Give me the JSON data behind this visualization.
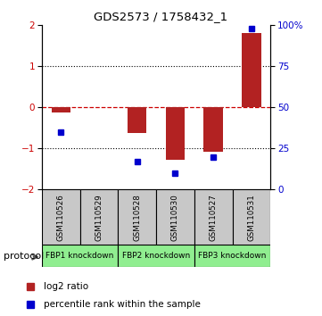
{
  "title": "GDS2573 / 1758432_1",
  "samples": [
    "GSM110526",
    "GSM110529",
    "GSM110528",
    "GSM110530",
    "GSM110527",
    "GSM110531"
  ],
  "log2_ratio": [
    -0.12,
    0.0,
    -0.62,
    -1.28,
    -1.08,
    1.82
  ],
  "percentile_rank": [
    35,
    null,
    17,
    10,
    20,
    98
  ],
  "bar_color": "#B22222",
  "dot_color": "#0000CD",
  "dashed_line_color": "#CC0000",
  "group_defs": [
    [
      0,
      1,
      "FBP1 knockdown"
    ],
    [
      2,
      3,
      "FBP2 knockdown"
    ],
    [
      4,
      5,
      "FBP3 knockdown"
    ]
  ],
  "group_color": "#90EE90",
  "protocol_label": "protocol",
  "legend_red": "log2 ratio",
  "legend_blue": "percentile rank within the sample",
  "sample_box_color": "#C8C8C8"
}
